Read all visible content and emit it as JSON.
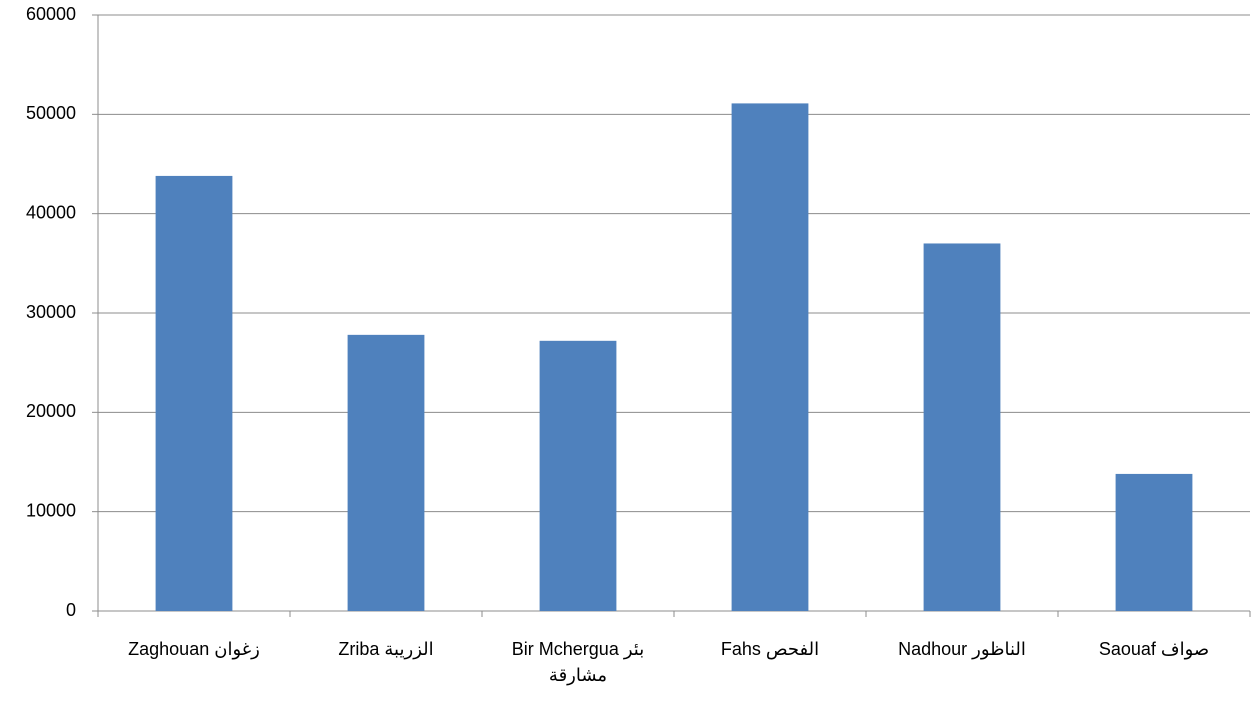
{
  "chart_data": {
    "type": "bar",
    "categories": [
      "Zaghouan زغوان",
      "Zriba الزريبة",
      "Bir Mchergua بئر مشارقة",
      "Fahs الفحص",
      "Nadhour الناظور",
      "Saouaf صواف"
    ],
    "values": [
      43800,
      27800,
      27200,
      51100,
      37000,
      13800
    ],
    "color": "#4f81bd",
    "ylim": [
      0,
      60000
    ],
    "yticks": [
      0,
      10000,
      20000,
      30000,
      40000,
      50000,
      60000
    ],
    "grid": true
  }
}
